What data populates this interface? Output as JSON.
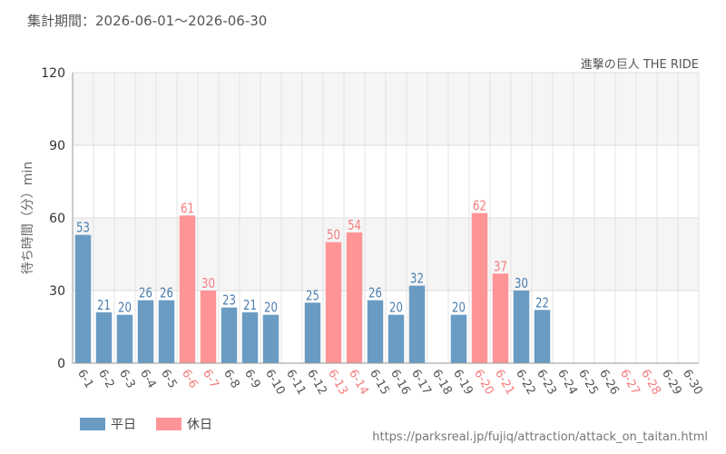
{
  "period_label": "集計期間：2026-06-01～2026-06-30",
  "attraction_name": "進撃の巨人 THE RIDE",
  "source_url": "https://parksreal.jp/fujiq/attraction/attack_on_taitan.html",
  "legend": {
    "weekday": "平日",
    "holiday": "休日"
  },
  "colors": {
    "weekday": "#6a9bc3",
    "holiday": "#ff9496",
    "weekday_text": "#4a7eae",
    "holiday_text": "#f57b7d"
  },
  "chart_data": {
    "type": "bar",
    "ylabel": "待ち時間（分）min",
    "ylim": [
      0,
      120
    ],
    "yticks": [
      0,
      30,
      60,
      90,
      120
    ],
    "categories": [
      "6-1",
      "6-2",
      "6-3",
      "6-4",
      "6-5",
      "6-6",
      "6-7",
      "6-8",
      "6-9",
      "6-10",
      "6-11",
      "6-12",
      "6-13",
      "6-14",
      "6-15",
      "6-16",
      "6-17",
      "6-18",
      "6-19",
      "6-20",
      "6-21",
      "6-22",
      "6-23",
      "6-24",
      "6-25",
      "6-26",
      "6-27",
      "6-28",
      "6-29",
      "6-30"
    ],
    "values": [
      53,
      21,
      20,
      26,
      26,
      61,
      30,
      23,
      21,
      20,
      null,
      25,
      50,
      54,
      26,
      20,
      32,
      null,
      20,
      62,
      37,
      30,
      22,
      null,
      null,
      null,
      null,
      null,
      null,
      null
    ],
    "day_type": [
      "weekday",
      "weekday",
      "weekday",
      "weekday",
      "weekday",
      "holiday",
      "holiday",
      "weekday",
      "weekday",
      "weekday",
      "weekday",
      "weekday",
      "holiday",
      "holiday",
      "weekday",
      "weekday",
      "weekday",
      "weekday",
      "weekday",
      "holiday",
      "holiday",
      "weekday",
      "weekday",
      "weekday",
      "weekday",
      "weekday",
      "holiday",
      "holiday",
      "weekday",
      "weekday"
    ]
  }
}
